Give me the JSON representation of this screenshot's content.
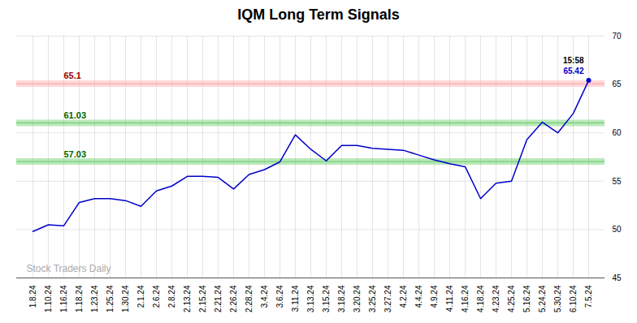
{
  "chart_data": {
    "type": "line",
    "title": "IQM Long Term Signals",
    "categories": [
      "1.8.24",
      "1.10.24",
      "1.16.24",
      "1.18.24",
      "1.23.24",
      "1.25.24",
      "1.30.24",
      "2.1.24",
      "2.6.24",
      "2.8.24",
      "2.13.24",
      "2.15.24",
      "2.21.24",
      "2.26.24",
      "2.28.24",
      "3.4.24",
      "3.6.24",
      "3.11.24",
      "3.13.24",
      "3.15.24",
      "3.18.24",
      "3.20.24",
      "3.25.24",
      "3.27.24",
      "4.2.24",
      "4.4.24",
      "4.9.24",
      "4.11.24",
      "4.16.24",
      "4.18.24",
      "4.23.24",
      "4.25.24",
      "5.16.24",
      "5.24.24",
      "5.30.24",
      "6.10.24",
      "7.5.24"
    ],
    "values": [
      49.8,
      50.5,
      50.4,
      52.8,
      53.2,
      53.2,
      53.0,
      52.4,
      54.0,
      54.5,
      55.5,
      55.5,
      55.4,
      54.2,
      55.7,
      56.2,
      57.0,
      59.8,
      58.3,
      57.1,
      58.7,
      58.7,
      58.4,
      58.3,
      58.2,
      57.7,
      57.2,
      56.8,
      56.5,
      53.2,
      54.8,
      55.0,
      59.3,
      61.1,
      60.0,
      62.0,
      65.42
    ],
    "color": "#0000cc",
    "ylim": [
      45,
      70
    ],
    "yticks": [
      45,
      50,
      55,
      60,
      65,
      70
    ],
    "grid": true,
    "hlines": [
      {
        "value": 65.1,
        "label": "65.1",
        "color": "#ffaaaa",
        "label_color": "#990000"
      },
      {
        "value": 61.03,
        "label": "61.03",
        "color": "#66cc66",
        "label_color": "#006600"
      },
      {
        "value": 57.03,
        "label": "57.03",
        "color": "#66cc66",
        "label_color": "#006600"
      }
    ],
    "annotations": [
      {
        "text": "15:58",
        "color": "#000000"
      },
      {
        "text": "65.42",
        "color": "#0000cc"
      }
    ],
    "watermark": "Stock Traders Daily"
  }
}
